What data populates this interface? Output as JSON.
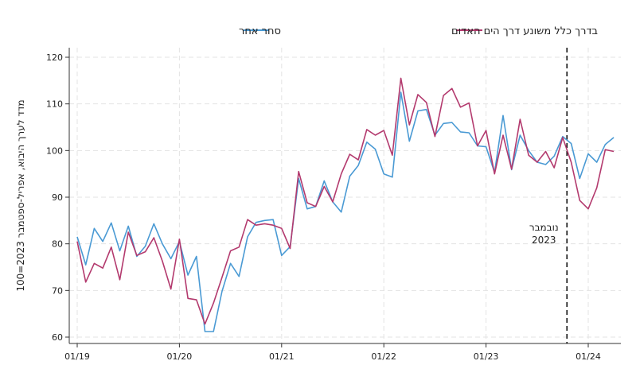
{
  "chart_data": {
    "type": "line",
    "ylabel": "מדד לערך היבוא, אפריל-ספטמבר 2023=100",
    "xlabel": "",
    "ylim": [
      60,
      122
    ],
    "y_ticks": [
      60,
      70,
      80,
      90,
      100,
      110,
      120
    ],
    "x_ticks": [
      "01/19",
      "01/20",
      "01/21",
      "01/22",
      "01/23",
      "01/24"
    ],
    "x_range": [
      "2019-01",
      "2024-05"
    ],
    "grid": true,
    "legend_position": "top-center",
    "annotation": {
      "line1": "נובמבר",
      "line2": "2023",
      "x": "2023-11"
    },
    "months": [
      "2019-01",
      "2019-02",
      "2019-03",
      "2019-04",
      "2019-05",
      "2019-06",
      "2019-07",
      "2019-08",
      "2019-09",
      "2019-10",
      "2019-11",
      "2019-12",
      "2020-01",
      "2020-02",
      "2020-03",
      "2020-04",
      "2020-05",
      "2020-06",
      "2020-07",
      "2020-08",
      "2020-09",
      "2020-10",
      "2020-11",
      "2020-12",
      "2021-01",
      "2021-02",
      "2021-03",
      "2021-04",
      "2021-05",
      "2021-06",
      "2021-07",
      "2021-08",
      "2021-09",
      "2021-10",
      "2021-11",
      "2021-12",
      "2022-01",
      "2022-02",
      "2022-03",
      "2022-04",
      "2022-05",
      "2022-06",
      "2022-07",
      "2022-08",
      "2022-09",
      "2022-10",
      "2022-11",
      "2022-12",
      "2023-01",
      "2023-02",
      "2023-03",
      "2023-04",
      "2023-05",
      "2023-06",
      "2023-07",
      "2023-08",
      "2023-09",
      "2023-10",
      "2023-11",
      "2023-12",
      "2024-01",
      "2024-02",
      "2024-03",
      "2024-04"
    ],
    "series": [
      {
        "name": "סחר אחר",
        "color": "#4a9ad4",
        "values": [
          81.5,
          75.5,
          83.3,
          80.5,
          84.5,
          78.5,
          83.8,
          77.3,
          79.5,
          84.3,
          80.0,
          76.8,
          80.5,
          73.3,
          77.3,
          61.2,
          61.2,
          69.8,
          75.8,
          73.0,
          81.5,
          84.6,
          85.0,
          85.2,
          77.5,
          79.4,
          94.0,
          87.5,
          88.0,
          93.5,
          89.0,
          86.8,
          94.5,
          96.8,
          101.8,
          100.3,
          95.0,
          94.3,
          112.5,
          102.0,
          108.5,
          108.8,
          103.3,
          105.8,
          106.0,
          104.0,
          103.8,
          101.0,
          100.8,
          95.3,
          107.5,
          95.9,
          103.3,
          100.0,
          97.5,
          97.0,
          98.8,
          103.0,
          101.5,
          94.0,
          99.3,
          97.5,
          101.3,
          102.8
        ]
      },
      {
        "name": "בדרך כלל משונע דרך הים האדום",
        "color": "#b33a6e",
        "values": [
          80.5,
          71.8,
          75.8,
          74.8,
          79.3,
          72.3,
          82.5,
          77.5,
          78.3,
          81.3,
          76.3,
          70.3,
          81.0,
          68.3,
          68.0,
          62.8,
          67.3,
          72.8,
          78.5,
          79.3,
          85.2,
          84.0,
          84.3,
          84.0,
          83.3,
          79.0,
          95.5,
          88.8,
          88.0,
          92.3,
          89.0,
          95.0,
          99.2,
          98.0,
          104.5,
          103.3,
          104.3,
          99.0,
          115.5,
          105.5,
          112.0,
          110.3,
          103.0,
          111.8,
          113.3,
          109.3,
          110.2,
          101.0,
          104.3,
          95.0,
          103.3,
          96.0,
          106.7,
          99.0,
          97.5,
          99.8,
          96.3,
          102.8,
          97.5,
          89.3,
          87.5,
          92.0,
          100.2,
          99.8
        ]
      }
    ]
  }
}
